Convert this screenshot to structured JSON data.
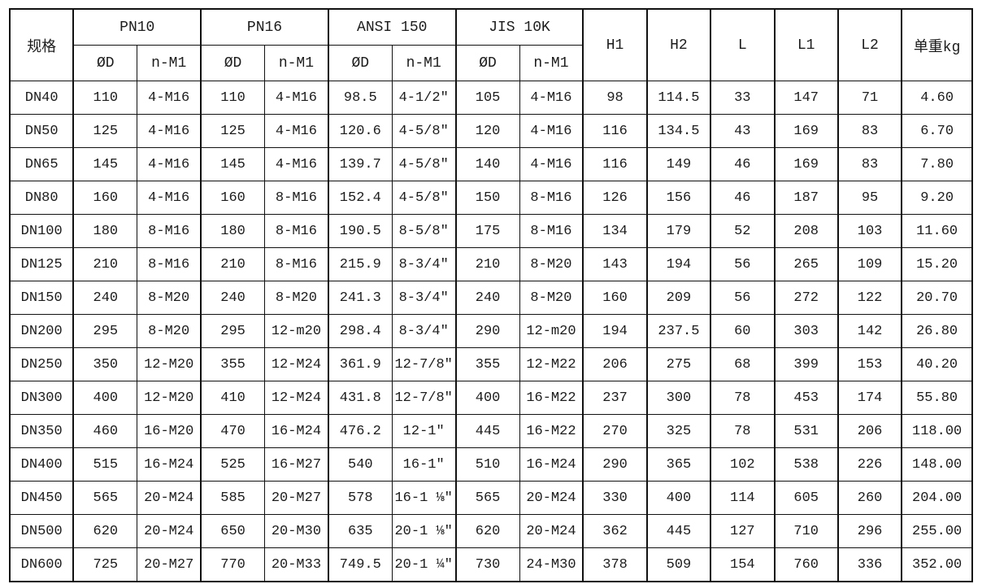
{
  "table": {
    "header": {
      "spec": "规格",
      "groups": [
        {
          "label": "PN10",
          "sub": [
            "ØD",
            "n-M1"
          ]
        },
        {
          "label": "PN16",
          "sub": [
            "ØD",
            "n-M1"
          ]
        },
        {
          "label": "ANSI 150",
          "sub": [
            "ØD",
            "n-M1"
          ]
        },
        {
          "label": "JIS 10K",
          "sub": [
            "ØD",
            "n-M1"
          ]
        }
      ],
      "singles": [
        "H1",
        "H2",
        "L",
        "L1",
        "L2",
        "单重kg"
      ]
    },
    "rows": [
      [
        "DN40",
        "110",
        "4-M16",
        "110",
        "4-M16",
        "98.5",
        "4-1/2″",
        "105",
        "4-M16",
        "98",
        "114.5",
        "33",
        "147",
        "71",
        "4.60"
      ],
      [
        "DN50",
        "125",
        "4-M16",
        "125",
        "4-M16",
        "120.6",
        "4-5/8″",
        "120",
        "4-M16",
        "116",
        "134.5",
        "43",
        "169",
        "83",
        "6.70"
      ],
      [
        "DN65",
        "145",
        "4-M16",
        "145",
        "4-M16",
        "139.7",
        "4-5/8″",
        "140",
        "4-M16",
        "116",
        "149",
        "46",
        "169",
        "83",
        "7.80"
      ],
      [
        "DN80",
        "160",
        "4-M16",
        "160",
        "8-M16",
        "152.4",
        "4-5/8″",
        "150",
        "8-M16",
        "126",
        "156",
        "46",
        "187",
        "95",
        "9.20"
      ],
      [
        "DN100",
        "180",
        "8-M16",
        "180",
        "8-M16",
        "190.5",
        "8-5/8″",
        "175",
        "8-M16",
        "134",
        "179",
        "52",
        "208",
        "103",
        "11.60"
      ],
      [
        "DN125",
        "210",
        "8-M16",
        "210",
        "8-M16",
        "215.9",
        "8-3/4″",
        "210",
        "8-M20",
        "143",
        "194",
        "56",
        "265",
        "109",
        "15.20"
      ],
      [
        "DN150",
        "240",
        "8-M20",
        "240",
        "8-M20",
        "241.3",
        "8-3/4″",
        "240",
        "8-M20",
        "160",
        "209",
        "56",
        "272",
        "122",
        "20.70"
      ],
      [
        "DN200",
        "295",
        "8-M20",
        "295",
        "12-m20",
        "298.4",
        "8-3/4″",
        "290",
        "12-m20",
        "194",
        "237.5",
        "60",
        "303",
        "142",
        "26.80"
      ],
      [
        "DN250",
        "350",
        "12-M20",
        "355",
        "12-M24",
        "361.9",
        "12-7/8″",
        "355",
        "12-M22",
        "206",
        "275",
        "68",
        "399",
        "153",
        "40.20"
      ],
      [
        "DN300",
        "400",
        "12-M20",
        "410",
        "12-M24",
        "431.8",
        "12-7/8″",
        "400",
        "16-M22",
        "237",
        "300",
        "78",
        "453",
        "174",
        "55.80"
      ],
      [
        "DN350",
        "460",
        "16-M20",
        "470",
        "16-M24",
        "476.2",
        "12-1″",
        "445",
        "16-M22",
        "270",
        "325",
        "78",
        "531",
        "206",
        "118.00"
      ],
      [
        "DN400",
        "515",
        "16-M24",
        "525",
        "16-M27",
        "540",
        "16-1″",
        "510",
        "16-M24",
        "290",
        "365",
        "102",
        "538",
        "226",
        "148.00"
      ],
      [
        "DN450",
        "565",
        "20-M24",
        "585",
        "20-M27",
        "578",
        "16-1 ⅛″",
        "565",
        "20-M24",
        "330",
        "400",
        "114",
        "605",
        "260",
        "204.00"
      ],
      [
        "DN500",
        "620",
        "20-M24",
        "650",
        "20-M30",
        "635",
        "20-1 ⅛″",
        "620",
        "20-M24",
        "362",
        "445",
        "127",
        "710",
        "296",
        "255.00"
      ],
      [
        "DN600",
        "725",
        "20-M27",
        "770",
        "20-M33",
        "749.5",
        "20-1 ¼″",
        "730",
        "24-M30",
        "378",
        "509",
        "154",
        "760",
        "336",
        "352.00"
      ]
    ]
  },
  "colors": {
    "border": "#111111",
    "text": "#1c1c1c",
    "background": "#ffffff"
  }
}
